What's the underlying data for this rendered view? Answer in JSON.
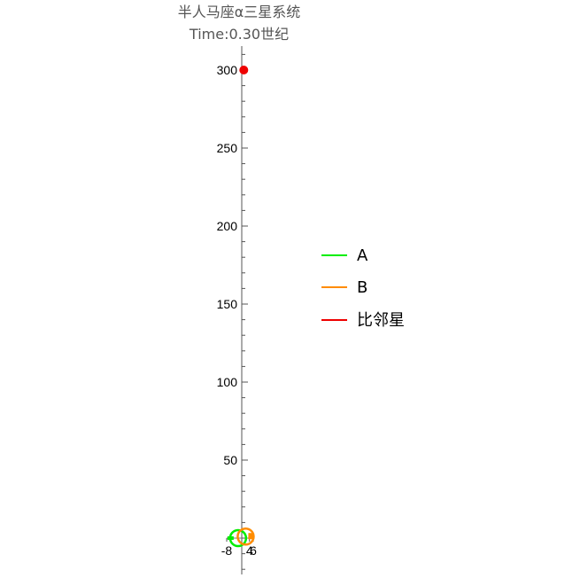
{
  "chart_data": {
    "type": "scatter",
    "title": "半人马座α三星系统",
    "subtitle": "Time:0.30世纪",
    "xlabel": "",
    "ylabel": "",
    "xlim": [
      -8,
      6
    ],
    "ylim": [
      -25,
      320
    ],
    "y_ticks": [
      50,
      100,
      150,
      200,
      250,
      300
    ],
    "x_ticks": [
      -8,
      4,
      6
    ],
    "x_tick_labels": [
      "-8",
      "4",
      "6"
    ],
    "grid": false,
    "legend_position": "right",
    "series": [
      {
        "name": "A",
        "color": "#00ee00",
        "x": [
          -2
        ],
        "y": [
          0
        ],
        "shape": "orbit-trail"
      },
      {
        "name": "B",
        "color": "#ff8c00",
        "x": [
          2
        ],
        "y": [
          1
        ],
        "shape": "orbit-trail"
      },
      {
        "name": "比邻星",
        "color": "#ee0000",
        "x": [
          1
        ],
        "y": [
          300
        ],
        "shape": "point"
      }
    ]
  }
}
